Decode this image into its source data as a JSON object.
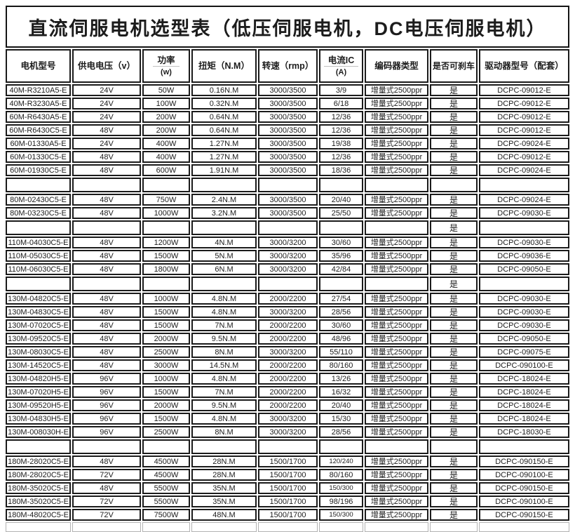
{
  "title": "直流伺服电机选型表（低压伺服电机，DC电压伺服电机）",
  "table": {
    "columns": [
      {
        "label": "电机型号"
      },
      {
        "label": "供电电压（v）"
      },
      {
        "label": "功率",
        "label2": "(w)"
      },
      {
        "label": "扭矩（N.M）"
      },
      {
        "label": "转速（rmp）"
      },
      {
        "label": "电流IC",
        "label2": "(A)"
      },
      {
        "label": "编码器类型"
      },
      {
        "label": "是否可刹车"
      },
      {
        "label": "驱动器型号（配套）"
      }
    ],
    "rows": [
      [
        "40M-R3210A5-E",
        "24V",
        "50W",
        "0.16N.M",
        "3000/3500",
        "3/9",
        "增量式2500ppr",
        "是",
        "DCPC-09012-E"
      ],
      [
        "40M-R3230A5-E",
        "24V",
        "100W",
        "0.32N.M",
        "3000/3500",
        "6/18",
        "增量式2500ppr",
        "是",
        "DCPC-09012-E"
      ],
      [
        "60M-R6430A5-E",
        "24V",
        "200W",
        "0.64N.M",
        "3000/3500",
        "12/36",
        "增量式2500ppr",
        "是",
        "DCPC-09012-E"
      ],
      [
        "60M-R6430C5-E",
        "48V",
        "200W",
        "0.64N.M",
        "3000/3500",
        "12/36",
        "增量式2500ppr",
        "是",
        "DCPC-09012-E"
      ],
      [
        "60M-01330A5-E",
        "24V",
        "400W",
        "1.27N.M",
        "3000/3500",
        "19/38",
        "增量式2500ppr",
        "是",
        "DCPC-09024-E"
      ],
      [
        "60M-01330C5-E",
        "48V",
        "400W",
        "1.27N.M",
        "3000/3500",
        "12/36",
        "增量式2500ppr",
        "是",
        "DCPC-09012-E"
      ],
      [
        "60M-01930C5-E",
        "48V",
        "600W",
        "1.91N.M",
        "3000/3500",
        "18/36",
        "增量式2500ppr",
        "是",
        "DCPC-09024-E"
      ],
      [
        "",
        "",
        "",
        "",
        "",
        "",
        "",
        "",
        ""
      ],
      [
        "80M-02430C5-E",
        "48V",
        "750W",
        "2.4N.M",
        "3000/3500",
        "20/40",
        "增量式2500ppr",
        "是",
        "DCPC-09024-E"
      ],
      [
        "80M-03230C5-E",
        "48V",
        "1000W",
        "3.2N.M",
        "3000/3500",
        "25/50",
        "增量式2500ppr",
        "是",
        "DCPC-09030-E"
      ],
      [
        "",
        "",
        "",
        "",
        "",
        "",
        "",
        "是",
        ""
      ],
      [
        "110M-04030C5-E",
        "48V",
        "1200W",
        "4N.M",
        "3000/3200",
        "30/60",
        "增量式2500ppr",
        "是",
        "DCPC-09030-E"
      ],
      [
        "110M-05030C5-E",
        "48V",
        "1500W",
        "5N.M",
        "3000/3200",
        "35/96",
        "增量式2500ppr",
        "是",
        "DCPC-09036-E"
      ],
      [
        "110M-06030C5-E",
        "48V",
        "1800W",
        "6N.M",
        "3000/3200",
        "42/84",
        "增量式2500ppr",
        "是",
        "DCPC-09050-E"
      ],
      [
        "",
        "",
        "",
        "",
        "",
        "",
        "",
        "是",
        ""
      ],
      [
        "130M-04820C5-E",
        "48V",
        "1000W",
        "4.8N.M",
        "2000/2200",
        "27/54",
        "增量式2500ppr",
        "是",
        "DCPC-09030-E"
      ],
      [
        "130M-04830C5-E",
        "48V",
        "1500W",
        "4.8N.M",
        "3000/3200",
        "28/56",
        "增量式2500ppr",
        "是",
        "DCPC-09030-E"
      ],
      [
        "130M-07020C5-E",
        "48V",
        "1500W",
        "7N.M",
        "2000/2200",
        "30/60",
        "增量式2500ppr",
        "是",
        "DCPC-09030-E"
      ],
      [
        "130M-09520C5-E",
        "48V",
        "2000W",
        "9.5N.M",
        "2000/2200",
        "48/96",
        "增量式2500ppr",
        "是",
        "DCPC-09050-E"
      ],
      [
        "130M-08030C5-E",
        "48V",
        "2500W",
        "8N.M",
        "3000/3200",
        "55/110",
        "增量式2500ppr",
        "是",
        "DCPC-09075-E"
      ],
      [
        "130M-14520C5-E",
        "48V",
        "3000W",
        "14.5N.M",
        "2000/2200",
        "80/160",
        "增量式2500ppr",
        "是",
        "DCPC-090100-E"
      ],
      [
        "130M-04820H5-E",
        "96V",
        "1000W",
        "4.8N.M",
        "2000/2200",
        "13/26",
        "增量式2500ppr",
        "是",
        "DCPC-18024-E"
      ],
      [
        "130M-07020H5-E",
        "96V",
        "1500W",
        "7N.M",
        "2000/2200",
        "16/32",
        "增量式2500ppr",
        "是",
        "DCPC-18024-E"
      ],
      [
        "130M-09520H5-E",
        "96V",
        "2000W",
        "9.5N.M",
        "2000/2200",
        "20/40",
        "增量式2500ppr",
        "是",
        "DCPC-18024-E"
      ],
      [
        "130M-04830H5-E",
        "96V",
        "1500W",
        "4.8N.M",
        "3000/3200",
        "15/30",
        "增量式2500ppr",
        "是",
        "DCPC-18024-E"
      ],
      [
        "130M-008030H-E",
        "96V",
        "2500W",
        "8N.M",
        "3000/3200",
        "28/56",
        "增量式2500ppr",
        "是",
        "DCPC-18030-E"
      ],
      [
        "",
        "",
        "",
        "",
        "",
        "",
        "",
        "",
        ""
      ],
      [
        "180M-28020C5-E",
        "48V",
        "4500W",
        "28N.M",
        "1500/1700",
        "120/240",
        "增量式2500ppr",
        "是",
        "DCPC-090150-E"
      ],
      [
        "180M-28020C5-E",
        "72V",
        "4500W",
        "28N.M",
        "1500/1700",
        "80/160",
        "增量式2500ppr",
        "是",
        "DCPC-090100-E"
      ],
      [
        "180M-35020C5-E",
        "48V",
        "5500W",
        "35N.M",
        "1500/1700",
        "150/300",
        "增量式2500ppr",
        "是",
        "DCPC-090150-E"
      ],
      [
        "180M-35020C5-E",
        "72V",
        "5500W",
        "35N.M",
        "1500/1700",
        "98/196",
        "增量式2500ppr",
        "是",
        "DCPC-090100-E"
      ],
      [
        "180M-48020C5-E",
        "72V",
        "7500W",
        "48N.M",
        "1500/1700",
        "150/300",
        "增量式2500ppr",
        "是",
        "DCPC-090150-E"
      ]
    ]
  }
}
